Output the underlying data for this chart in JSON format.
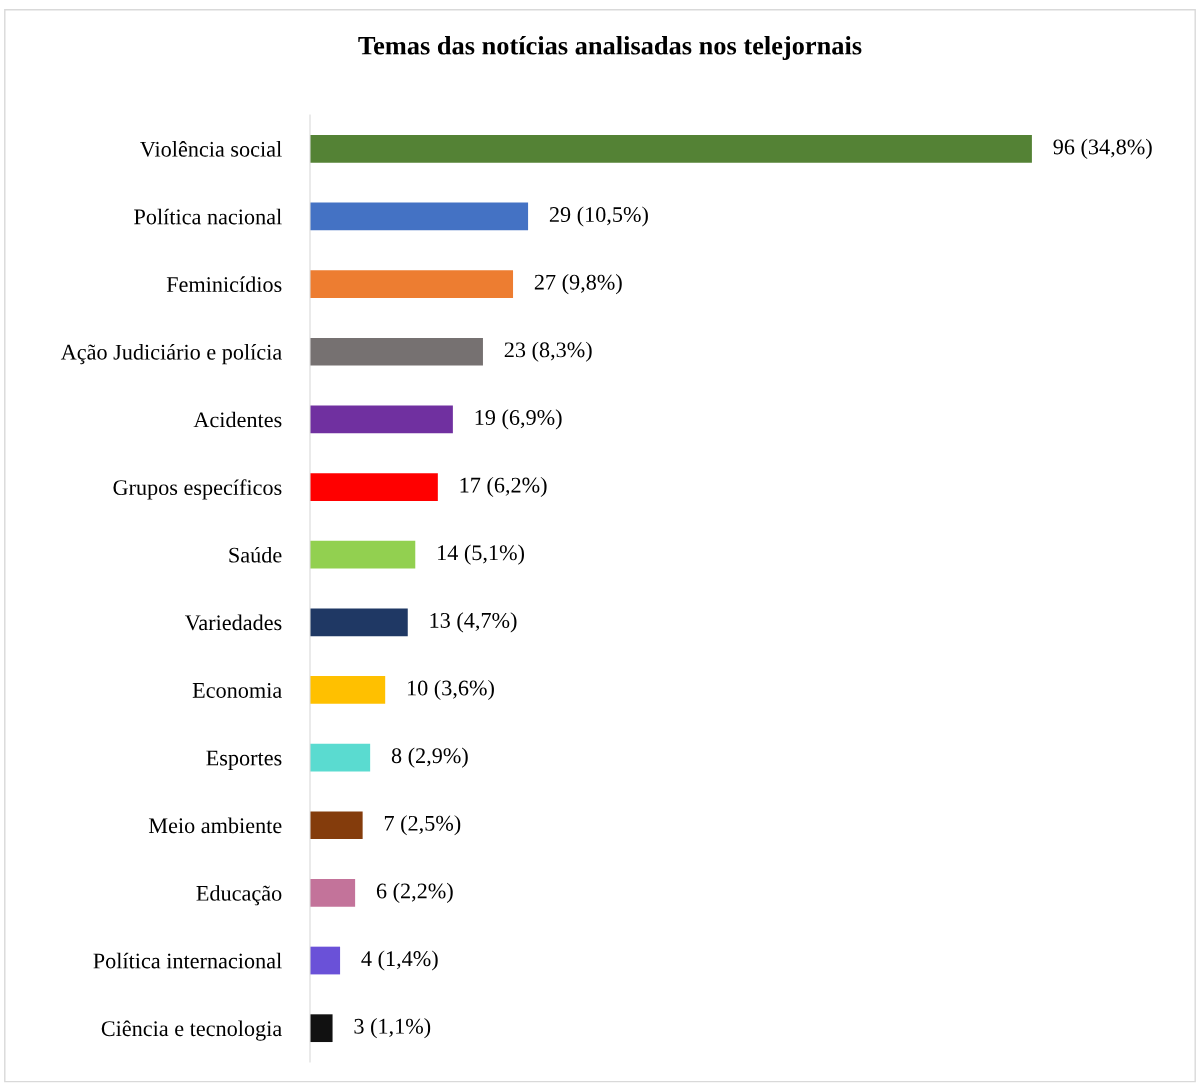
{
  "chart_data": {
    "type": "bar",
    "orientation": "horizontal",
    "title": "Temas das notícias analisadas nos telejornais",
    "categories": [
      "Violência social",
      "Política nacional",
      "Feminicídios",
      "Ação Judiciário e polícia",
      "Acidentes",
      "Grupos específicos",
      "Saúde",
      "Variedades",
      "Economia",
      "Esportes",
      "Meio ambiente",
      "Educação",
      "Política internacional",
      "Ciência e tecnologia"
    ],
    "values": [
      96,
      29,
      27,
      23,
      19,
      17,
      14,
      13,
      10,
      8,
      7,
      6,
      4,
      3
    ],
    "colors": [
      "#548235",
      "#4472c4",
      "#ed7d31",
      "#767171",
      "#7030a0",
      "#ff0000",
      "#92d050",
      "#1f3864",
      "#ffc000",
      "#5adbd0",
      "#843c0c",
      "#c3739a",
      "#6a51d8",
      "#111111"
    ],
    "value_labels": [
      "96 (34,8%)",
      "29 (10,5%)",
      "27 (9,8%)",
      "23 (8,3%)",
      "19 (6,9%)",
      "17 (6,2%)",
      "14 (5,1%)",
      "13 (4,7%)",
      "10 (3,6%)",
      "8 (2,9%)",
      "7 (2,5%)",
      "6 (2,2%)",
      "4 (1,4%)",
      "3 (1,1%)"
    ],
    "tick_labels": "y"
  }
}
